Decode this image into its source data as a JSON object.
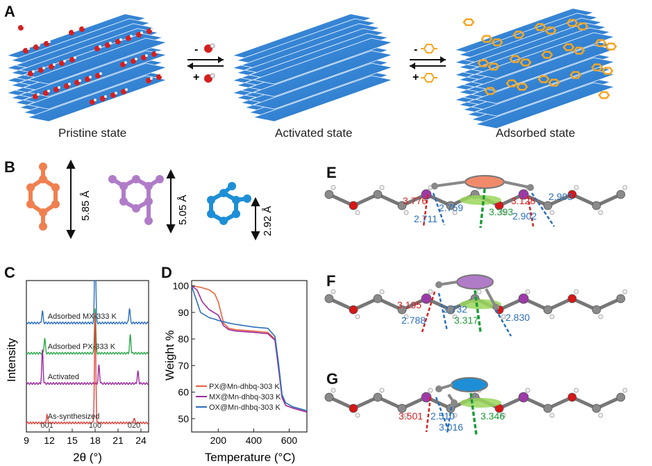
{
  "panel_labels": {
    "a": "A",
    "b": "B",
    "c": "C",
    "d": "D",
    "e": "E",
    "f": "F",
    "g": "G"
  },
  "panel_a": {
    "states": [
      "Pristine state",
      "Activated state",
      "Adsorbed state"
    ],
    "arrow_signs": {
      "left_top": "-",
      "left_bottom": "+",
      "right_top": "-",
      "right_bottom": "+"
    },
    "colors": {
      "sheet": "#2f7fd0",
      "water_o": "#d42020",
      "guest": "#f5a623"
    }
  },
  "panel_b": {
    "dims": [
      "5.85 Å",
      "5.05 Å",
      "2.92 Å"
    ],
    "colors": {
      "px": "#f08050",
      "mx": "#b07cc8",
      "ox": "#1e8fd6"
    }
  },
  "chart_c": {
    "type": "line",
    "xlabel": "2θ (°)",
    "ylabel": "Intensity",
    "xlim": [
      9,
      25
    ],
    "xticks": [
      "9",
      "12",
      "15",
      "18",
      "21",
      "24"
    ],
    "series": [
      {
        "name": "Adsorbed MX-333 K",
        "color": "#2c6fbb",
        "offset": 0.72,
        "peaks": [
          [
            11.1,
            0.08
          ],
          [
            18.0,
            0.55
          ],
          [
            22.5,
            0.1
          ]
        ]
      },
      {
        "name": "Adsorbed PX-333 K",
        "color": "#2ea84a",
        "offset": 0.52,
        "peaks": [
          [
            11.4,
            0.1
          ],
          [
            18.0,
            0.3
          ],
          [
            22.6,
            0.12
          ]
        ]
      },
      {
        "name": "Activated",
        "color": "#9c2aa0",
        "offset": 0.32,
        "peaks": [
          [
            11.1,
            0.22
          ],
          [
            18.5,
            0.12
          ],
          [
            23.6,
            0.08
          ]
        ]
      },
      {
        "name": "As-synthesized",
        "color": "#e0453a",
        "offset": 0.06,
        "peaks": [
          [
            11.7,
            0.05
          ],
          [
            18.0,
            0.72
          ],
          [
            23.1,
            0.03
          ]
        ]
      }
    ],
    "peak_labels": [
      "001",
      "100",
      "020"
    ],
    "peak_label_x": [
      11.7,
      18.0,
      23.1
    ]
  },
  "chart_d": {
    "type": "line",
    "xlabel": "Temperature (°C)",
    "ylabel": "Weight %",
    "xlim": [
      50,
      700
    ],
    "ylim": [
      45,
      102
    ],
    "xticks": [
      "200",
      "400",
      "600"
    ],
    "yticks": [
      "50",
      "60",
      "70",
      "80",
      "90",
      "100"
    ],
    "series": [
      {
        "name": "PX@Mn-dhbq-303 K",
        "color": "#e8623a",
        "x": [
          50,
          100,
          150,
          180,
          200,
          230,
          260,
          300,
          400,
          480,
          520,
          540,
          560,
          580,
          620,
          700
        ],
        "y": [
          100,
          99.5,
          98.5,
          97,
          94,
          86,
          84,
          83.5,
          83,
          82.5,
          80,
          70,
          58,
          55,
          54,
          52.5
        ]
      },
      {
        "name": "MX@Mn-dhbq-303 K",
        "color": "#9c2aa0",
        "x": [
          50,
          80,
          110,
          150,
          200,
          230,
          260,
          300,
          400,
          480,
          520,
          540,
          560,
          580,
          620,
          700
        ],
        "y": [
          100,
          98.5,
          94,
          91,
          89,
          85,
          83.5,
          83,
          82.5,
          82,
          79.5,
          69,
          58,
          55,
          54,
          52.5
        ]
      },
      {
        "name": "OX@Mn-dhbq-303 K",
        "color": "#2c6fbb",
        "x": [
          50,
          70,
          100,
          150,
          180,
          200,
          260,
          300,
          400,
          480,
          520,
          540,
          560,
          580,
          620,
          700
        ],
        "y": [
          100,
          96,
          90,
          88,
          87.5,
          87,
          86,
          85.5,
          84.5,
          84,
          81,
          71,
          59,
          56,
          54.5,
          53
        ]
      }
    ]
  },
  "panel_e": {
    "values": {
      "red_left": "3.776",
      "blue_left_top": "2.759",
      "blue_left_bottom": "2.711",
      "green": "3.393",
      "red_right": "3.128",
      "blue_right_top": "2.903",
      "blue_right_bottom": "2.902"
    },
    "guest_color": "#f08a6a"
  },
  "panel_f": {
    "values": {
      "red_left": "3.195",
      "blue_left_bottom": "2.788",
      "blue_mid": "2.732",
      "green": "3.317",
      "blue_right": "2.830"
    },
    "guest_color": "#b07cc8"
  },
  "panel_g": {
    "values": {
      "red_left": "3.501",
      "blue_top": "2.510",
      "blue_mid": "3.016",
      "green": "3.346"
    },
    "guest_color": "#1e8fd6"
  }
}
